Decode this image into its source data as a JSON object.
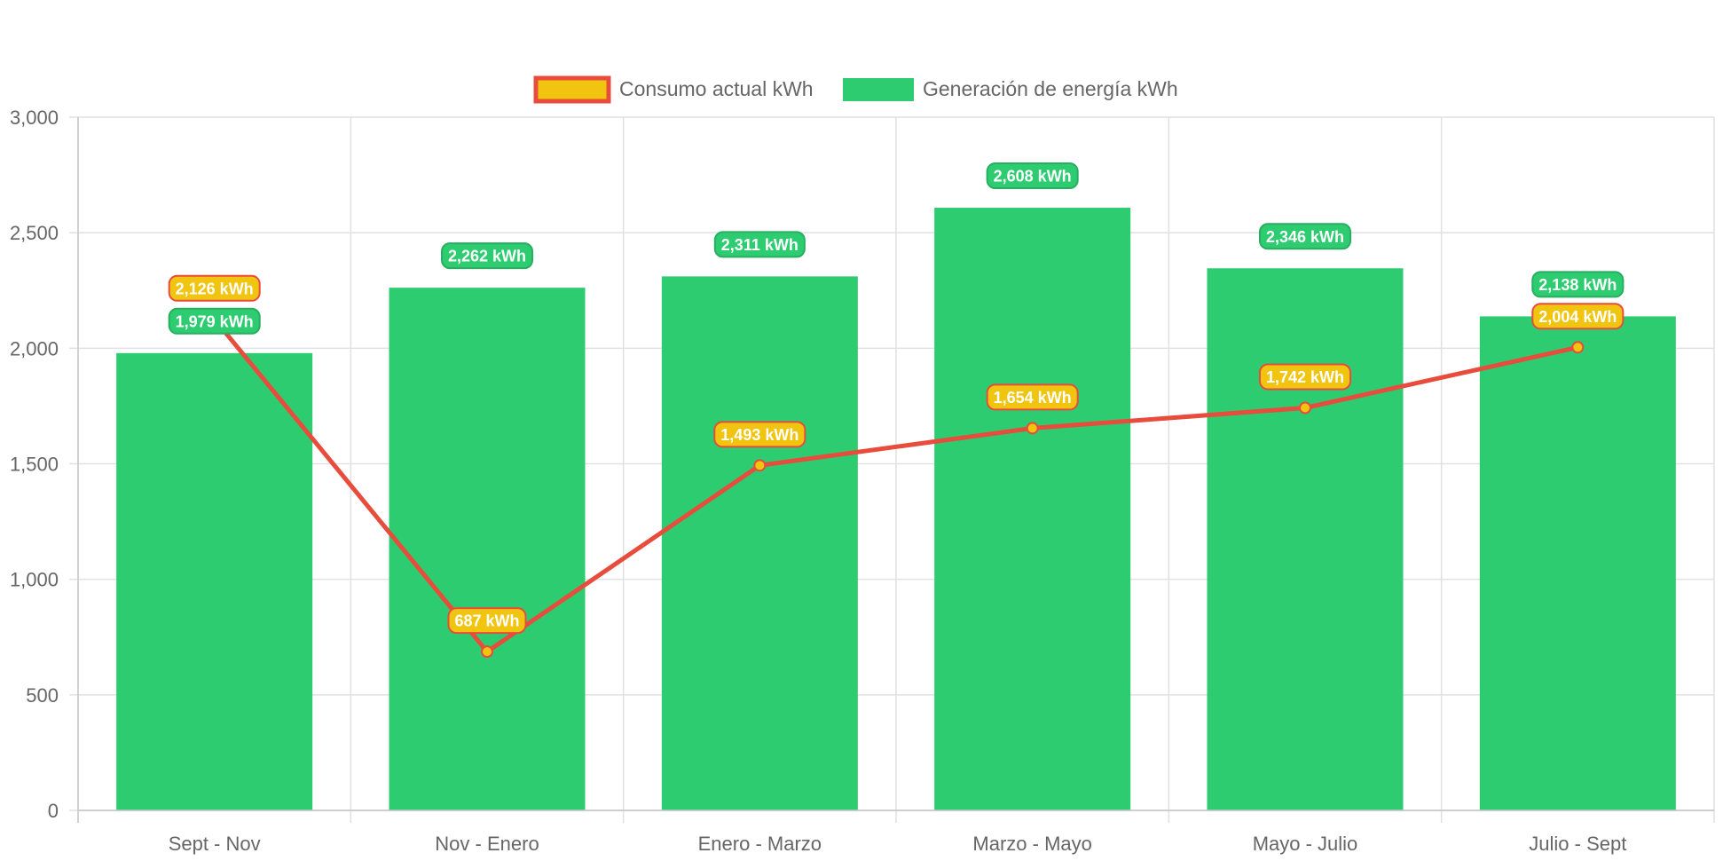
{
  "chart_data": {
    "type": "bar",
    "categories": [
      "Sept - Nov",
      "Nov - Enero",
      "Enero - Marzo",
      "Marzo - Mayo",
      "Mayo - Julio",
      "Julio - Sept"
    ],
    "ylim": [
      0,
      3000
    ],
    "yticks": [
      0,
      500,
      1000,
      1500,
      2000,
      2500,
      3000
    ],
    "ytick_labels": [
      "0",
      "500",
      "1,000",
      "1,500",
      "2,000",
      "2,500",
      "3,000"
    ],
    "grid": true,
    "legend_position": "top-center",
    "series": [
      {
        "name": "Consumo actual kWh",
        "type": "line",
        "values": [
          2126,
          687,
          1493,
          1654,
          1742,
          2004
        ],
        "labels": [
          "2,126 kWh",
          "687 kWh",
          "1,493 kWh",
          "1,654 kWh",
          "1,742 kWh",
          "2,004 kWh"
        ],
        "line_color": "#e74c3c",
        "point_color": "#f1c40f"
      },
      {
        "name": "Generación de energía kWh",
        "type": "bar",
        "values": [
          1979,
          2262,
          2311,
          2608,
          2346,
          2138
        ],
        "labels": [
          "1,979 kWh",
          "2,262 kWh",
          "2,311 kWh",
          "2,608 kWh",
          "2,346 kWh",
          "2,138 kWh"
        ],
        "color": "#2ecc71",
        "label_border": "#27ae60"
      }
    ]
  }
}
